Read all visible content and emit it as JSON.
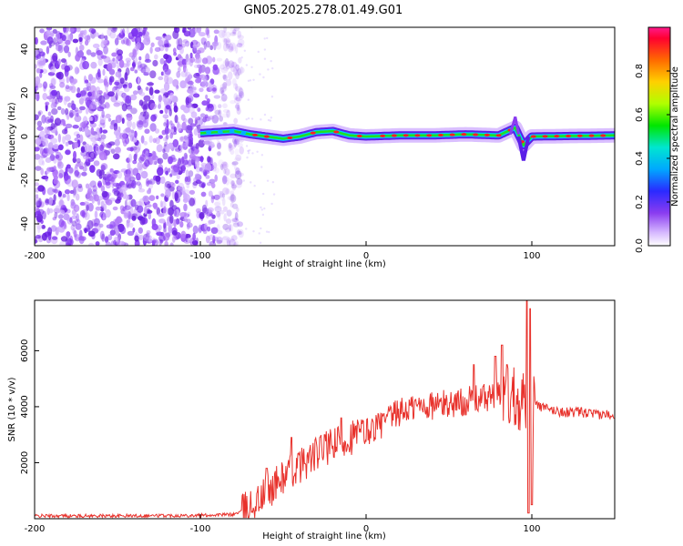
{
  "title": "GN05.2025.278.01.49.G01",
  "chart_data": [
    {
      "type": "heatmap",
      "title": "GN05.2025.278.01.49.G01",
      "xlabel": "Height of straight line (km)",
      "ylabel": "Frequency (Hz)",
      "xlim": [
        -200,
        150
      ],
      "ylim": [
        -50,
        50
      ],
      "x_ticks": [
        -200,
        -100,
        0,
        100
      ],
      "y_ticks": [
        -40,
        -20,
        0,
        20,
        40
      ],
      "grid": false,
      "colorbar": {
        "label": "Normalized spectral amplitude",
        "range": [
          0.0,
          1.0
        ],
        "ticks": [
          0.0,
          0.2,
          0.4,
          0.6,
          0.8
        ]
      },
      "ridge": {
        "description": "frequency ridge near 0 Hz",
        "points": [
          [
            -100,
            1.5
          ],
          [
            -90,
            2.0
          ],
          [
            -80,
            2.5
          ],
          [
            -70,
            1.0
          ],
          [
            -60,
            0.0
          ],
          [
            -50,
            -1.0
          ],
          [
            -40,
            0.0
          ],
          [
            -30,
            2.0
          ],
          [
            -20,
            2.5
          ],
          [
            -10,
            0.5
          ],
          [
            0,
            0.0
          ],
          [
            20,
            0.5
          ],
          [
            40,
            0.5
          ],
          [
            60,
            1.0
          ],
          [
            80,
            0.5
          ],
          [
            90,
            4.0
          ],
          [
            95,
            -4.0
          ],
          [
            100,
            0.0
          ],
          [
            150,
            0.5
          ]
        ]
      }
    },
    {
      "type": "line",
      "xlabel": "Height of straight line (km)",
      "ylabel": "SNR (10 * v/v)",
      "xlim": [
        -200,
        150
      ],
      "ylim": [
        0,
        7800
      ],
      "x_ticks": [
        -200,
        -100,
        0,
        100
      ],
      "y_ticks": [
        2000,
        4000,
        6000
      ],
      "grid": false,
      "series": [
        {
          "name": "SNR",
          "color": "#e8322c",
          "envelope_x": [
            -200,
            -150,
            -100,
            -80,
            -70,
            -60,
            -50,
            -40,
            -30,
            -20,
            -10,
            0,
            10,
            20,
            30,
            40,
            50,
            60,
            70,
            80,
            85,
            90,
            95,
            98,
            100,
            105,
            110,
            120,
            130,
            140,
            150
          ],
          "envelope_y": [
            100,
            100,
            120,
            150,
            400,
            900,
            1500,
            1900,
            2300,
            2600,
            2900,
            3100,
            3400,
            3800,
            4000,
            4050,
            4100,
            4200,
            4300,
            4400,
            4450,
            4400,
            4300,
            4000,
            4200,
            4000,
            3900,
            3800,
            3800,
            3700,
            3750
          ],
          "spikes": [
            [
              -60,
              1800
            ],
            [
              -45,
              2900
            ],
            [
              -25,
              3000
            ],
            [
              -15,
              3600
            ],
            [
              65,
              5500
            ],
            [
              78,
              5800
            ],
            [
              82,
              6200
            ],
            [
              85,
              5500
            ],
            [
              97,
              7800
            ],
            [
              98,
              200
            ],
            [
              99,
              7500
            ],
            [
              100,
              500
            ]
          ]
        }
      ]
    }
  ]
}
